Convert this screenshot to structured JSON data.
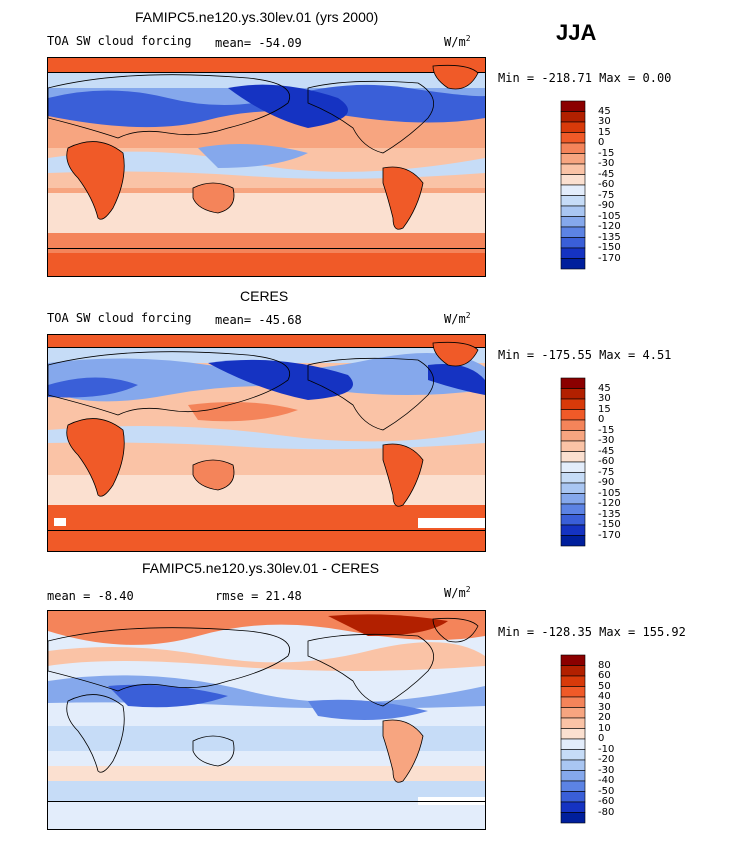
{
  "season": "JJA",
  "units_label": "W/m",
  "units_exp": "2",
  "panels": [
    {
      "title": "FAMIPC5.ne120.ys.30lev.01 (yrs 2000)",
      "subtitle": "TOA SW cloud forcing",
      "stat1": "mean= -54.09",
      "stat2": "",
      "minmax": "Min = -218.71  Max =    0.00"
    },
    {
      "title": "CERES",
      "subtitle": "TOA SW cloud forcing",
      "stat1": "mean= -45.68",
      "stat2": "",
      "minmax": "Min = -175.55  Max =    4.51"
    },
    {
      "title": "FAMIPC5.ne120.ys.30lev.01 - CERES",
      "subtitle": "",
      "stat1": "mean =  -8.40",
      "stat2": "rmse =  21.48",
      "minmax": "Min = -128.35  Max = 155.92"
    }
  ],
  "colorbars": [
    {
      "labels": [
        "45",
        "30",
        "15",
        "0",
        "-15",
        "-30",
        "-45",
        "-60",
        "-75",
        "-90",
        "-105",
        "-120",
        "-135",
        "-150",
        "-170"
      ],
      "colors": [
        "#8b0000",
        "#b22000",
        "#d83a0a",
        "#f05a28",
        "#f4845a",
        "#f7a580",
        "#fac3a6",
        "#fbe0d0",
        "#e3edfb",
        "#c6dcf7",
        "#a9c6f2",
        "#85a8ec",
        "#5c83e4",
        "#3a5fd8",
        "#1533c2",
        "#001f9c"
      ]
    },
    {
      "labels": [
        "45",
        "30",
        "15",
        "0",
        "-15",
        "-30",
        "-45",
        "-60",
        "-75",
        "-90",
        "-105",
        "-120",
        "-135",
        "-150",
        "-170"
      ],
      "colors": [
        "#8b0000",
        "#b22000",
        "#d83a0a",
        "#f05a28",
        "#f4845a",
        "#f7a580",
        "#fac3a6",
        "#fbe0d0",
        "#e3edfb",
        "#c6dcf7",
        "#a9c6f2",
        "#85a8ec",
        "#5c83e4",
        "#3a5fd8",
        "#1533c2",
        "#001f9c"
      ]
    },
    {
      "labels": [
        "80",
        "60",
        "50",
        "40",
        "30",
        "20",
        "10",
        "0",
        "-10",
        "-20",
        "-30",
        "-40",
        "-50",
        "-60",
        "-80"
      ],
      "colors": [
        "#8b0000",
        "#b22000",
        "#d83a0a",
        "#f05a28",
        "#f4845a",
        "#f7a580",
        "#fac3a6",
        "#fbe0d0",
        "#e3edfb",
        "#c6dcf7",
        "#a9c6f2",
        "#85a8ec",
        "#5c83e4",
        "#3a5fd8",
        "#1533c2",
        "#001f9c"
      ]
    }
  ],
  "chart_data": [
    {
      "type": "heatmap",
      "title": "FAMIPC5.ne120.ys.30lev.01 (yrs 2000)",
      "variable": "TOA SW cloud forcing",
      "units": "W/m2",
      "season": "JJA",
      "mean": -54.09,
      "min": -218.71,
      "max": 0.0,
      "contour_levels": [
        45,
        30,
        15,
        0,
        -15,
        -30,
        -45,
        -60,
        -75,
        -90,
        -105,
        -120,
        -135,
        -150,
        -170
      ]
    },
    {
      "type": "heatmap",
      "title": "CERES",
      "variable": "TOA SW cloud forcing",
      "units": "W/m2",
      "season": "JJA",
      "mean": -45.68,
      "min": -175.55,
      "max": 4.51,
      "contour_levels": [
        45,
        30,
        15,
        0,
        -15,
        -30,
        -45,
        -60,
        -75,
        -90,
        -105,
        -120,
        -135,
        -150,
        -170
      ]
    },
    {
      "type": "heatmap",
      "title": "FAMIPC5.ne120.ys.30lev.01 - CERES",
      "units": "W/m2",
      "season": "JJA",
      "mean": -8.4,
      "rmse": 21.48,
      "min": -128.35,
      "max": 155.92,
      "contour_levels": [
        80,
        60,
        50,
        40,
        30,
        20,
        10,
        0,
        -10,
        -20,
        -30,
        -40,
        -50,
        -60,
        -80
      ]
    }
  ]
}
